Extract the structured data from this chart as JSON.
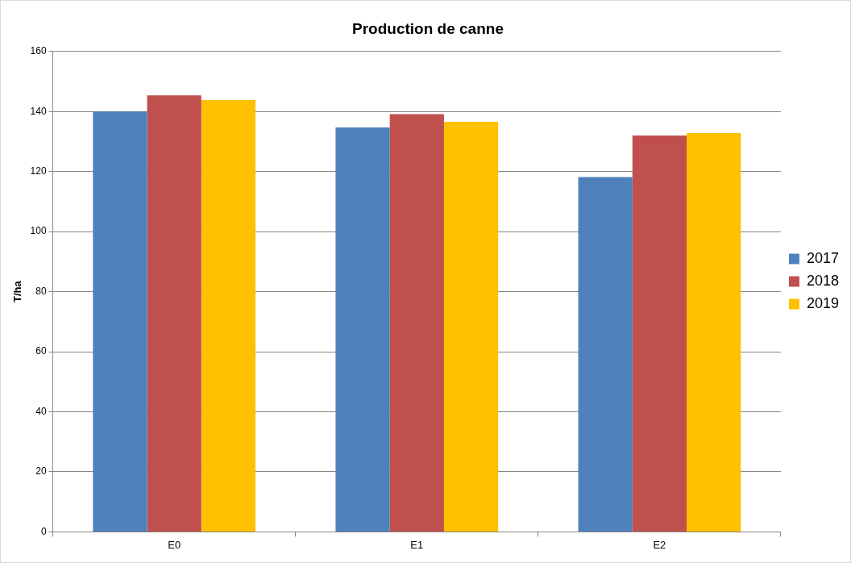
{
  "chart_data": {
    "type": "bar",
    "title": "Production de canne",
    "ylabel": "T/ha",
    "categories": [
      "E0",
      "E1",
      "E2"
    ],
    "series": [
      {
        "name": "2017",
        "color": "#4f81bd",
        "values": [
          140,
          134.7,
          118.2
        ]
      },
      {
        "name": "2018",
        "color": "#c0504d",
        "values": [
          145.4,
          139.1,
          132
        ]
      },
      {
        "name": "2019",
        "color": "#ffc000",
        "values": [
          143.8,
          136.6,
          132.8
        ]
      }
    ],
    "ylim": [
      0,
      160
    ],
    "yticks": [
      0,
      20,
      40,
      60,
      80,
      100,
      120,
      140,
      160
    ],
    "grid": "y",
    "legend": "right"
  }
}
